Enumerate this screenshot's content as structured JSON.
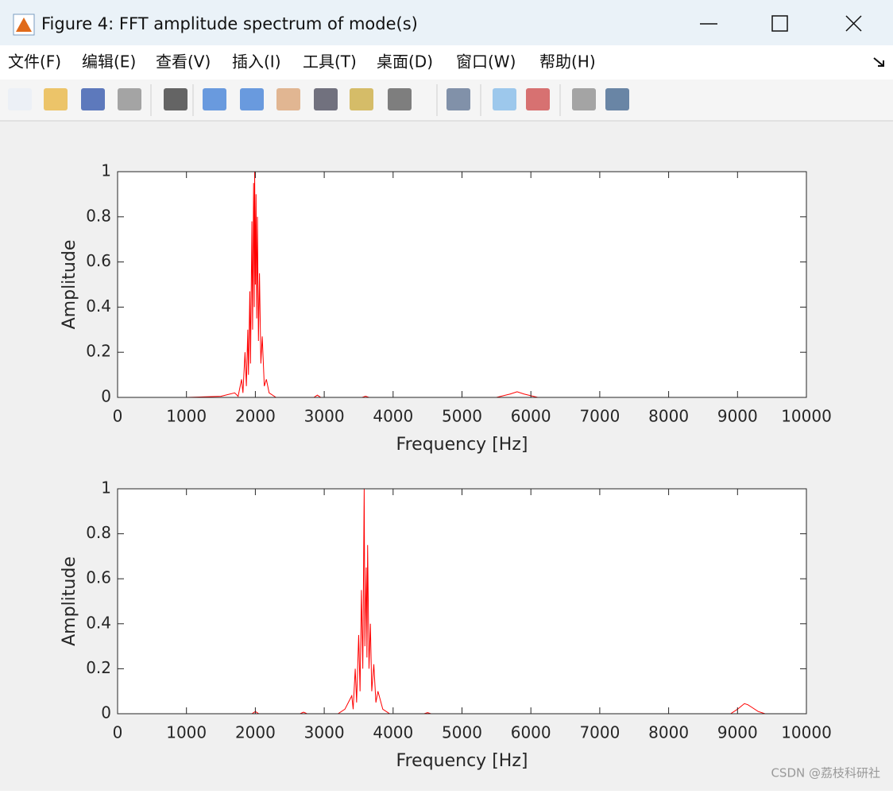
{
  "window": {
    "title": "Figure 4: FFT amplitude spectrum of mode(s)"
  },
  "menu": [
    "文件(F)",
    "编辑(E)",
    "查看(V)",
    "插入(I)",
    "工具(T)",
    "桌面(D)",
    "窗口(W)",
    "帮助(H)"
  ],
  "watermark": "CSDN @荔枝科研社",
  "chart_data": [
    {
      "type": "line",
      "xlabel": "Frequency [Hz]",
      "ylabel": "Amplitude",
      "color": "#ff0000",
      "xlim": [
        0,
        10000
      ],
      "ylim": [
        0,
        1
      ],
      "xticks": [
        0,
        1000,
        2000,
        3000,
        4000,
        5000,
        6000,
        7000,
        8000,
        9000,
        10000
      ],
      "yticks": [
        0,
        0.2,
        0.4,
        0.6,
        0.8,
        1
      ],
      "x": [
        0,
        1000,
        1500,
        1700,
        1750,
        1800,
        1820,
        1850,
        1870,
        1890,
        1900,
        1920,
        1930,
        1950,
        1960,
        1975,
        1985,
        1990,
        2000,
        2010,
        2020,
        2030,
        2045,
        2060,
        2080,
        2100,
        2130,
        2160,
        2200,
        2300,
        2850,
        2900,
        2950,
        3550,
        3600,
        3650,
        5500,
        5700,
        5800,
        5900,
        6100,
        10000
      ],
      "values": [
        0,
        0,
        0.005,
        0.02,
        0.005,
        0.08,
        0.02,
        0.2,
        0.05,
        0.3,
        0.1,
        0.47,
        0.15,
        0.78,
        0.3,
        0.95,
        0.4,
        1,
        0.5,
        0.9,
        0.35,
        0.8,
        0.25,
        0.55,
        0.15,
        0.27,
        0.05,
        0.08,
        0.02,
        0,
        0,
        0.01,
        0,
        0,
        0.005,
        0,
        0,
        0.015,
        0.025,
        0.015,
        0,
        0
      ]
    },
    {
      "type": "line",
      "xlabel": "Frequency [Hz]",
      "ylabel": "Amplitude",
      "color": "#ff0000",
      "xlim": [
        0,
        10000
      ],
      "ylim": [
        0,
        1
      ],
      "xticks": [
        0,
        1000,
        2000,
        3000,
        4000,
        5000,
        6000,
        7000,
        8000,
        9000,
        10000
      ],
      "yticks": [
        0,
        0.2,
        0.4,
        0.6,
        0.8,
        1
      ],
      "x": [
        0,
        1950,
        2000,
        2050,
        2650,
        2700,
        2750,
        3200,
        3300,
        3350,
        3400,
        3420,
        3450,
        3470,
        3500,
        3520,
        3540,
        3560,
        3580,
        3590,
        3610,
        3620,
        3630,
        3650,
        3670,
        3690,
        3720,
        3750,
        3780,
        3850,
        3950,
        4450,
        4500,
        4550,
        8900,
        9000,
        9100,
        9150,
        9200,
        9300,
        9400,
        10000
      ],
      "values": [
        0,
        0,
        0.01,
        0,
        0,
        0.007,
        0,
        0,
        0.02,
        0.05,
        0.08,
        0.02,
        0.2,
        0.05,
        0.35,
        0.1,
        0.55,
        0.2,
        1,
        0.3,
        0.65,
        0.25,
        0.75,
        0.2,
        0.4,
        0.1,
        0.22,
        0.05,
        0.1,
        0.02,
        0,
        0,
        0.005,
        0,
        0,
        0.02,
        0.045,
        0.04,
        0.03,
        0.01,
        0,
        0
      ]
    }
  ]
}
